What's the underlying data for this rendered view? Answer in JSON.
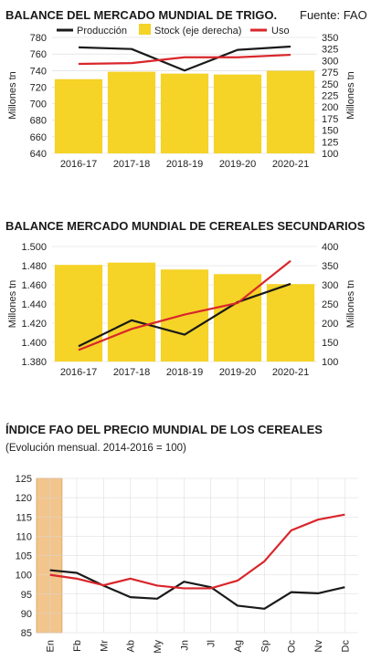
{
  "colors": {
    "bar": "#f5d327",
    "production": "#1a1a1a",
    "use": "#d9262b",
    "grid": "#d8d8d8",
    "highlight": "#f2c58c"
  },
  "chart_data": [
    {
      "type": "bar",
      "title": "BALANCE DEL MERCADO MUNDIAL DE TRIGO.",
      "source": "Fuente: FAO",
      "ylabel": "Millones tn",
      "y2label": "Millones tn",
      "categories": [
        "2016-17",
        "2017-18",
        "2018-19",
        "2019-20",
        "2020-21"
      ],
      "ylim": [
        640,
        780
      ],
      "yticks": [
        "640",
        "660",
        "680",
        "700",
        "720",
        "740",
        "760",
        "780"
      ],
      "y2lim": [
        100,
        350
      ],
      "y2ticks": [
        "100",
        "125",
        "150",
        "175",
        "200",
        "225",
        "250",
        "275",
        "300",
        "325",
        "350"
      ],
      "legend": [
        "Producción",
        "Stock (eje derecha)",
        "Uso"
      ],
      "series": [
        {
          "name": "Stock (eje derecha)",
          "kind": "bar",
          "axis": "right",
          "values": [
            260,
            276,
            272,
            270,
            278
          ]
        },
        {
          "name": "Producción",
          "kind": "line",
          "axis": "left",
          "values": [
            768,
            766,
            740,
            765,
            769
          ]
        },
        {
          "name": "Uso",
          "kind": "line",
          "axis": "left",
          "values": [
            748,
            749,
            756,
            756,
            759
          ]
        }
      ]
    },
    {
      "type": "bar",
      "title": "BALANCE MERCADO MUNDIAL DE CEREALES SECUNDARIOS",
      "ylabel": "Millones tn",
      "y2label": "Millones tn",
      "categories": [
        "2016-17",
        "2017-18",
        "2018-19",
        "2019-20",
        "2020-21"
      ],
      "ylim": [
        1380,
        1500
      ],
      "yticks": [
        "1.380",
        "1.400",
        "1.420",
        "1.440",
        "1.460",
        "1.480",
        "1.500"
      ],
      "y2lim": [
        100,
        400
      ],
      "y2ticks": [
        "100",
        "150",
        "200",
        "250",
        "300",
        "350",
        "400"
      ],
      "series": [
        {
          "name": "Stock",
          "kind": "bar",
          "axis": "right",
          "values": [
            352,
            358,
            340,
            328,
            302
          ]
        },
        {
          "name": "Producción",
          "kind": "line",
          "axis": "left",
          "values": [
            1396,
            1423,
            1408,
            1442,
            1461
          ]
        },
        {
          "name": "Uso",
          "kind": "line",
          "axis": "left",
          "values": [
            1392,
            1414,
            1429,
            1441,
            1485
          ]
        }
      ]
    },
    {
      "type": "line",
      "title": "ÍNDICE FAO DEL PRECIO MUNDIAL DE LOS CEREALES",
      "subtitle": "(Evolución mensual. 2014-2016 = 100)",
      "categories": [
        "En",
        "Fb",
        "Mr",
        "Ab",
        "My",
        "Jn",
        "Jl",
        "Ag",
        "Sp",
        "Oc",
        "Nv",
        "Dc"
      ],
      "ylim": [
        85,
        125
      ],
      "yticks": [
        "85",
        "90",
        "95",
        "100",
        "105",
        "110",
        "115",
        "120",
        "125"
      ],
      "highlight_category": "En",
      "series": [
        {
          "name": "",
          "color": "black",
          "values": [
            101.2,
            100.5,
            97.2,
            94.2,
            93.8,
            98.2,
            96.8,
            92.0,
            91.2,
            95.5,
            95.2,
            96.8
          ]
        },
        {
          "name": "",
          "color": "red",
          "values": [
            100.0,
            99.0,
            97.3,
            99.0,
            97.2,
            96.5,
            96.5,
            98.5,
            103.5,
            111.5,
            114.3,
            115.6
          ]
        }
      ]
    }
  ]
}
